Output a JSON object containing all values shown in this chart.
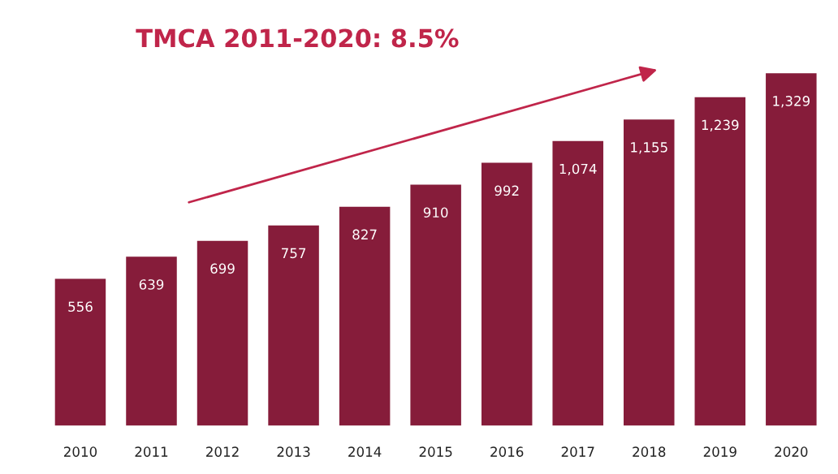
{
  "chart_data": {
    "type": "bar",
    "title": "TMCA 2011-2020: 8.5%",
    "categories": [
      "2010",
      "2011",
      "2012",
      "2013",
      "2014",
      "2015",
      "2016",
      "2017",
      "2018",
      "2019",
      "2020"
    ],
    "values": [
      556,
      639,
      699,
      757,
      827,
      910,
      992,
      1074,
      1155,
      1239,
      1329
    ],
    "value_labels": [
      "556",
      "639",
      "699",
      "757",
      "827",
      "910",
      "992",
      "1,074",
      "1,155",
      "1,239",
      "1,329"
    ],
    "color": "#861c3a",
    "grid": false,
    "legend": false
  }
}
